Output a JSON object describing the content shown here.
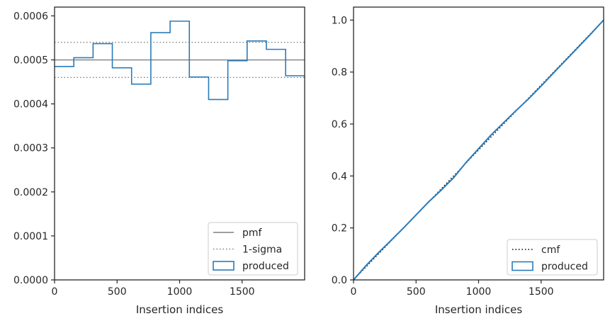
{
  "chart_data": [
    {
      "type": "line",
      "xlabel": "Insertion indices",
      "ylabel": "",
      "xlim": [
        0,
        2000
      ],
      "ylim": [
        0,
        0.00062
      ],
      "xticks": [
        0,
        500,
        1000,
        1500
      ],
      "xtick_labels": [
        "0",
        "500",
        "1000",
        "1500"
      ],
      "yticks": [
        0,
        0.0001,
        0.0002,
        0.0003,
        0.0004,
        0.0005,
        0.0006
      ],
      "ytick_labels": [
        "0.0000",
        "0.0001",
        "0.0002",
        "0.0003",
        "0.0004",
        "0.0005",
        "0.0006"
      ],
      "grid": false,
      "legend_position": "lower-right",
      "series": [
        {
          "name": "pmf",
          "style": "solid",
          "color": "#808080",
          "x": [
            0,
            2000
          ],
          "y": [
            0.0005,
            0.0005
          ]
        },
        {
          "name": "1-sigma",
          "style": "dotted",
          "color": "#808080",
          "x": [
            0,
            2000
          ],
          "y": [
            0.00054,
            0.00054
          ],
          "y2": [
            0.00046,
            0.00046
          ]
        },
        {
          "name": "produced",
          "style": "step",
          "color": "#2b7bb9",
          "bin_edges": [
            0,
            154,
            308,
            462,
            616,
            770,
            924,
            1078,
            1232,
            1386,
            1540,
            1694,
            1848,
            2000
          ],
          "values": [
            0.000485,
            0.000505,
            0.000537,
            0.000482,
            0.000445,
            0.000562,
            0.000588,
            0.000461,
            0.00041,
            0.000498,
            0.000543,
            0.000524,
            0.000464
          ]
        }
      ]
    },
    {
      "type": "line",
      "xlabel": "Insertion indices",
      "ylabel": "",
      "xlim": [
        0,
        2000
      ],
      "ylim": [
        0,
        1.05
      ],
      "xticks": [
        0,
        500,
        1000,
        1500
      ],
      "xtick_labels": [
        "0",
        "500",
        "1000",
        "1500"
      ],
      "yticks": [
        0,
        0.2,
        0.4,
        0.6,
        0.8,
        1.0
      ],
      "ytick_labels": [
        "0.0",
        "0.2",
        "0.4",
        "0.6",
        "0.8",
        "1.0"
      ],
      "grid": false,
      "legend_position": "lower-right",
      "series": [
        {
          "name": "cmf",
          "style": "dotted",
          "color": "#000000",
          "x": [
            0,
            2000
          ],
          "y": [
            0,
            1.0
          ]
        },
        {
          "name": "produced",
          "style": "step",
          "color": "#2b7bb9",
          "x": [
            0,
            100,
            200,
            300,
            400,
            500,
            600,
            700,
            800,
            900,
            1000,
            1100,
            1200,
            1300,
            1400,
            1500,
            1600,
            1700,
            1800,
            1900,
            2000
          ],
          "y": [
            0,
            0.055,
            0.105,
            0.152,
            0.2,
            0.25,
            0.3,
            0.345,
            0.393,
            0.452,
            0.505,
            0.558,
            0.605,
            0.652,
            0.697,
            0.746,
            0.797,
            0.847,
            0.897,
            0.948,
            1.0
          ]
        }
      ]
    }
  ]
}
